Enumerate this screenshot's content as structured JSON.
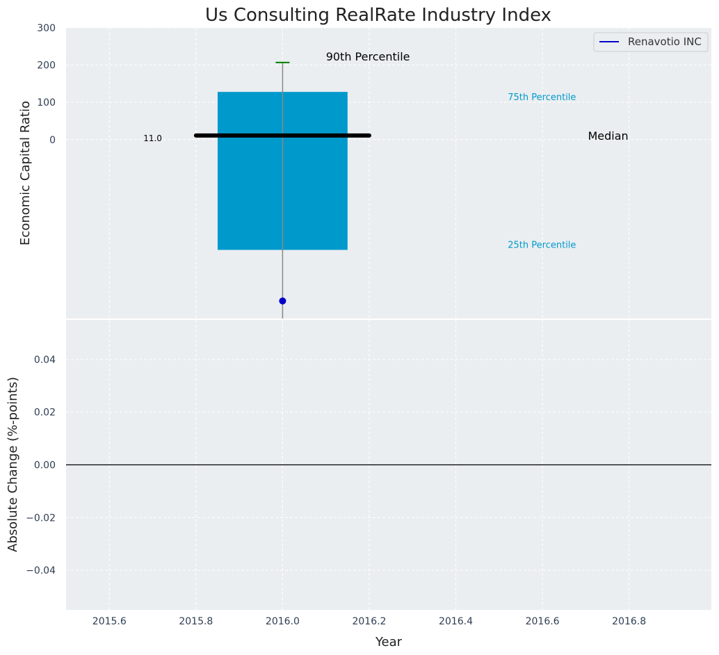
{
  "chart_data": {
    "type": "box",
    "title": "Us Consulting RealRate Industry Index",
    "top_panel": {
      "ylabel": "Economic Capital Ratio",
      "ylim": [
        -480,
        300
      ],
      "yticks": [
        0,
        100,
        200,
        300
      ],
      "grid": true,
      "legend": {
        "position": "top-right",
        "entries": [
          {
            "name": "Renavotio INC",
            "color": "#0000cc"
          }
        ]
      },
      "box": {
        "x": 2016.0,
        "q1": -296,
        "q3": 128,
        "color": "#0099cc"
      },
      "median": {
        "value": 11.0,
        "label": "11.0",
        "x_start": 2015.8,
        "x_end": 2016.2
      },
      "whisker": {
        "high": 207
      },
      "company_point": {
        "name": "Renavotio INC",
        "x": 2016.0,
        "y": -433,
        "color": "#0000cc"
      },
      "annotations": {
        "p90": "90th Percentile",
        "p75": "75th Percentile",
        "p25": "25th Percentile",
        "median": "Median"
      }
    },
    "bottom_panel": {
      "xlabel": "Year",
      "ylabel": "Absolute Change (%-points)",
      "ylim": [
        -0.055,
        0.055
      ],
      "yticks": [
        -0.04,
        -0.02,
        0.0,
        0.02,
        0.04
      ],
      "ytick_labels": [
        "−0.04",
        "−0.02",
        "0.00",
        "0.02",
        "0.04"
      ],
      "zero_line": 0.0,
      "grid": true
    },
    "xlim": [
      2015.5,
      2016.99
    ],
    "xticks": [
      2015.6,
      2015.8,
      2016.0,
      2016.2,
      2016.4,
      2016.6,
      2016.8
    ],
    "xtick_labels": [
      "2015.6",
      "2015.8",
      "2016.0",
      "2016.2",
      "2016.4",
      "2016.6",
      "2016.8"
    ],
    "colors": {
      "background": "#eaeef0",
      "grid": "#ffffff",
      "box": "#0099cc",
      "median": "#000000",
      "whisker_cap": "#008000",
      "company": "#0000cc",
      "annotation_percentile": "#0099cc",
      "tick_text": "#2e3d52"
    }
  }
}
